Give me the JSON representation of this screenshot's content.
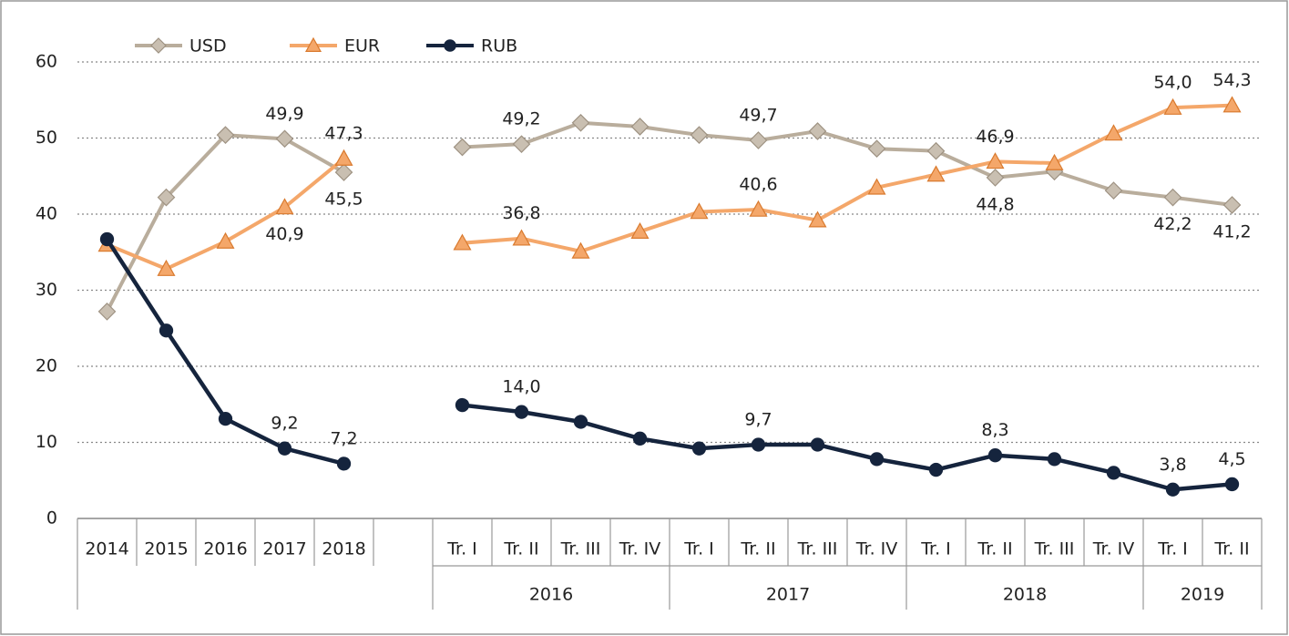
{
  "chart_data": {
    "type": "line",
    "categories": [
      "2014",
      "2015",
      "2016",
      "2017",
      "2018",
      null,
      "Tr. I",
      "Tr. II",
      "Tr. III",
      "Tr. IV",
      "Tr. I",
      "Tr. II",
      "Tr. III",
      "Tr. IV",
      "Tr. I",
      "Tr. II",
      "Tr. III",
      "Tr. IV",
      "Tr. I",
      "Tr. II"
    ],
    "x_groups": [
      {
        "label": "2016",
        "count": 4
      },
      {
        "label": "2017",
        "count": 4
      },
      {
        "label": "2018",
        "count": 4
      },
      {
        "label": "2019",
        "count": 2
      }
    ],
    "series": [
      {
        "name": "USD",
        "color": "#b9ad9c",
        "marker": "diamond",
        "values": [
          27.2,
          42.2,
          50.4,
          49.9,
          45.5,
          null,
          48.8,
          49.2,
          52.0,
          51.5,
          50.4,
          49.7,
          50.9,
          48.6,
          48.3,
          44.8,
          45.6,
          43.1,
          42.2,
          41.2
        ],
        "value_labels": [
          null,
          null,
          null,
          "49,9",
          "45,5",
          null,
          null,
          "49,2",
          null,
          null,
          null,
          "49,7",
          null,
          null,
          null,
          "44,8",
          null,
          null,
          "42,2",
          "41,2"
        ]
      },
      {
        "name": "EUR",
        "color": "#f4a76a",
        "marker": "triangle",
        "values": [
          36.0,
          32.8,
          36.4,
          40.9,
          47.3,
          null,
          36.2,
          36.8,
          35.1,
          37.7,
          40.3,
          40.6,
          39.2,
          43.5,
          45.2,
          46.9,
          46.7,
          50.6,
          54.0,
          54.3
        ],
        "value_labels": [
          null,
          null,
          null,
          "40,9",
          "47,3",
          null,
          null,
          "36,8",
          null,
          null,
          null,
          "40,6",
          null,
          null,
          null,
          "46,9",
          null,
          null,
          "54,0",
          "54,3"
        ]
      },
      {
        "name": "RUB",
        "color": "#15243d",
        "marker": "circle",
        "values": [
          36.7,
          24.7,
          13.1,
          9.2,
          7.2,
          null,
          14.9,
          14.0,
          12.7,
          10.5,
          9.2,
          9.7,
          9.7,
          7.8,
          6.4,
          8.3,
          7.8,
          6.0,
          3.8,
          4.5
        ],
        "value_labels": [
          null,
          null,
          null,
          "9,2",
          "7,2",
          null,
          null,
          "14,0",
          null,
          null,
          null,
          "9,7",
          null,
          null,
          null,
          "8,3",
          null,
          null,
          "3,8",
          "4,5"
        ]
      }
    ],
    "ylim": [
      0,
      60
    ],
    "yticks": [
      0,
      10,
      20,
      30,
      40,
      50,
      60
    ],
    "grid": true,
    "legend": "top-left"
  }
}
